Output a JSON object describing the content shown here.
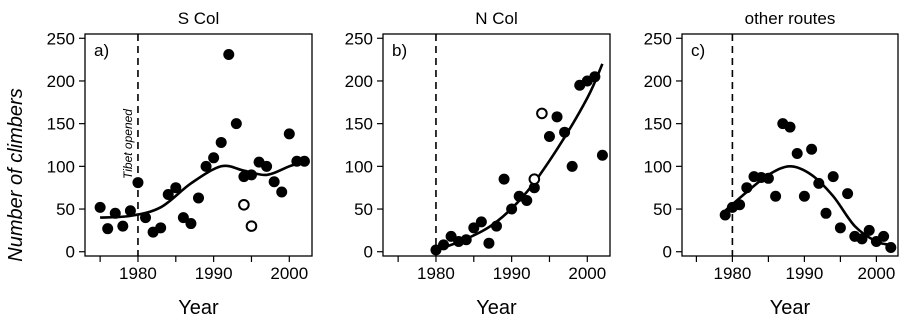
{
  "figure": {
    "ylabel": "Number of climbers"
  },
  "chart_data": [
    {
      "type": "scatter",
      "title": "S Col",
      "panel_label": "a)",
      "xlabel": "Year",
      "ylabel": "Number of climbers",
      "xlim": [
        1973,
        2003
      ],
      "ylim": [
        -5,
        255
      ],
      "xticks": [
        1980,
        1990,
        2000
      ],
      "yticks": [
        0,
        50,
        100,
        150,
        200,
        250
      ],
      "grid": false,
      "vline": {
        "x": 1980,
        "style": "dashed",
        "label": "Tibet opened"
      },
      "series": [
        {
          "marker": "filled",
          "x": [
            1975,
            1976,
            1977,
            1978,
            1979,
            1980,
            1981,
            1982,
            1983,
            1984,
            1985,
            1986,
            1987,
            1988,
            1989,
            1990,
            1991,
            1992,
            1993,
            1994,
            1995,
            1996,
            1997,
            1998,
            1999,
            2000,
            2001,
            2002
          ],
          "y": [
            52,
            27,
            45,
            30,
            48,
            81,
            40,
            23,
            28,
            67,
            75,
            40,
            33,
            63,
            100,
            110,
            128,
            231,
            150,
            88,
            90,
            105,
            100,
            82,
            70,
            138,
            106,
            106
          ]
        },
        {
          "marker": "open",
          "x": [
            1994,
            1995
          ],
          "y": [
            55,
            30
          ]
        }
      ],
      "fit_curve": {
        "x": [
          1975,
          1979,
          1983,
          1987,
          1991,
          1994,
          1997,
          2000,
          2002
        ],
        "y": [
          40,
          42,
          52,
          80,
          100,
          95,
          90,
          100,
          106
        ]
      }
    },
    {
      "type": "scatter",
      "title": "N Col",
      "panel_label": "b)",
      "xlabel": "Year",
      "ylabel": "",
      "xlim": [
        1973,
        2003
      ],
      "ylim": [
        -5,
        255
      ],
      "xticks": [
        1980,
        1990,
        2000
      ],
      "yticks": [
        0,
        50,
        100,
        150,
        200,
        250
      ],
      "grid": false,
      "vline": {
        "x": 1980,
        "style": "dashed"
      },
      "series": [
        {
          "marker": "filled",
          "x": [
            1980,
            1981,
            1982,
            1983,
            1984,
            1985,
            1986,
            1987,
            1988,
            1989,
            1990,
            1991,
            1992,
            1993,
            1995,
            1996,
            1997,
            1998,
            1999,
            2000,
            2001,
            2002
          ],
          "y": [
            2,
            8,
            18,
            12,
            14,
            28,
            35,
            10,
            30,
            85,
            50,
            65,
            60,
            75,
            135,
            158,
            140,
            100,
            195,
            200,
            205,
            113
          ]
        },
        {
          "marker": "open",
          "x": [
            1993,
            1994
          ],
          "y": [
            85,
            162
          ]
        }
      ],
      "fit_curve": {
        "x": [
          1980,
          1984,
          1988,
          1992,
          1996,
          2000,
          2002
        ],
        "y": [
          2,
          15,
          35,
          70,
          120,
          180,
          220
        ]
      }
    },
    {
      "type": "scatter",
      "title": "other routes",
      "panel_label": "c)",
      "xlabel": "Year",
      "ylabel": "",
      "xlim": [
        1973,
        2003
      ],
      "ylim": [
        -5,
        255
      ],
      "xticks": [
        1980,
        1990,
        2000
      ],
      "yticks": [
        0,
        50,
        100,
        150,
        200,
        250
      ],
      "grid": false,
      "vline": {
        "x": 1980,
        "style": "dashed"
      },
      "series": [
        {
          "marker": "filled",
          "x": [
            1979,
            1980,
            1981,
            1982,
            1983,
            1984,
            1985,
            1986,
            1987,
            1988,
            1989,
            1990,
            1991,
            1992,
            1993,
            1994,
            1995,
            1996,
            1997,
            1998,
            1999,
            2000,
            2001,
            2002
          ],
          "y": [
            43,
            52,
            55,
            75,
            88,
            87,
            86,
            65,
            150,
            146,
            115,
            65,
            120,
            80,
            45,
            88,
            28,
            68,
            18,
            15,
            25,
            12,
            18,
            5
          ]
        }
      ],
      "fit_curve": {
        "x": [
          1979,
          1982,
          1985,
          1988,
          1991,
          1994,
          1997,
          2000,
          2002
        ],
        "y": [
          48,
          70,
          90,
          100,
          90,
          65,
          30,
          12,
          8
        ]
      }
    }
  ]
}
